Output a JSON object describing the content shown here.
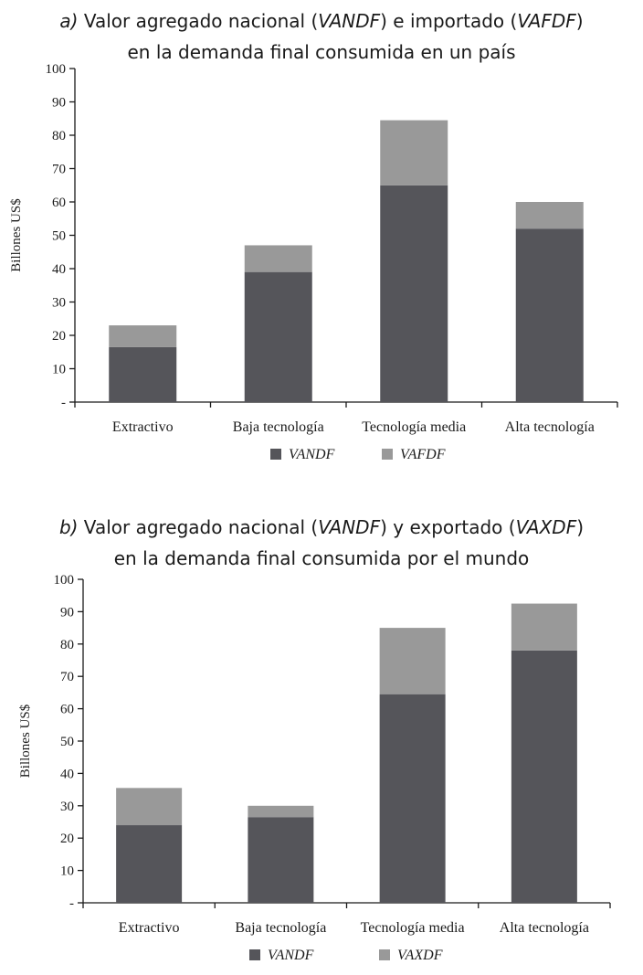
{
  "chart_data": [
    {
      "type": "bar",
      "stacked": true,
      "title_parts": {
        "prefix": "a)",
        "line1_a": " Valor agregado nacional (",
        "line1_b": "VANDF",
        "line1_c": ") e importado (",
        "line1_d": "VAFDF",
        "line1_e": ")",
        "line2": "en la demanda final consumida en un país"
      },
      "ylabel": "Billones US$",
      "ylim": [
        0,
        100
      ],
      "ytick_labels": [
        "-",
        "10",
        "20",
        "30",
        "40",
        "50",
        "60",
        "70",
        "80",
        "90",
        "100"
      ],
      "categories": [
        "Extractivo",
        "Baja tecnología",
        "Tecnología media",
        "Alta tecnología"
      ],
      "series": [
        {
          "name": "VANDF",
          "values": [
            16.5,
            39,
            65,
            52
          ],
          "color": "#55555a"
        },
        {
          "name": "VAFDF",
          "values": [
            6.5,
            8,
            19.5,
            8
          ],
          "color": "#999999"
        }
      ],
      "legend": "bottom-center"
    },
    {
      "type": "bar",
      "stacked": true,
      "title_parts": {
        "prefix": "b)",
        "line1_a": " Valor agregado nacional (",
        "line1_b": "VANDF",
        "line1_c": ") y exportado (",
        "line1_d": "VAXDF",
        "line1_e": ")",
        "line2": "en la demanda final consumida por el mundo"
      },
      "ylabel": "Billones US$",
      "ylim": [
        0,
        100
      ],
      "ytick_labels": [
        "-",
        "10",
        "20",
        "30",
        "40",
        "50",
        "60",
        "70",
        "80",
        "90",
        "100"
      ],
      "categories": [
        "Extractivo",
        "Baja tecnología",
        "Tecnología media",
        "Alta tecnología"
      ],
      "series": [
        {
          "name": "VANDF",
          "values": [
            24,
            26.5,
            64.5,
            78
          ],
          "color": "#55555a"
        },
        {
          "name": "VAXDF",
          "values": [
            11.5,
            3.5,
            20.5,
            14.5
          ],
          "color": "#999999"
        }
      ],
      "legend": "bottom-center"
    }
  ]
}
